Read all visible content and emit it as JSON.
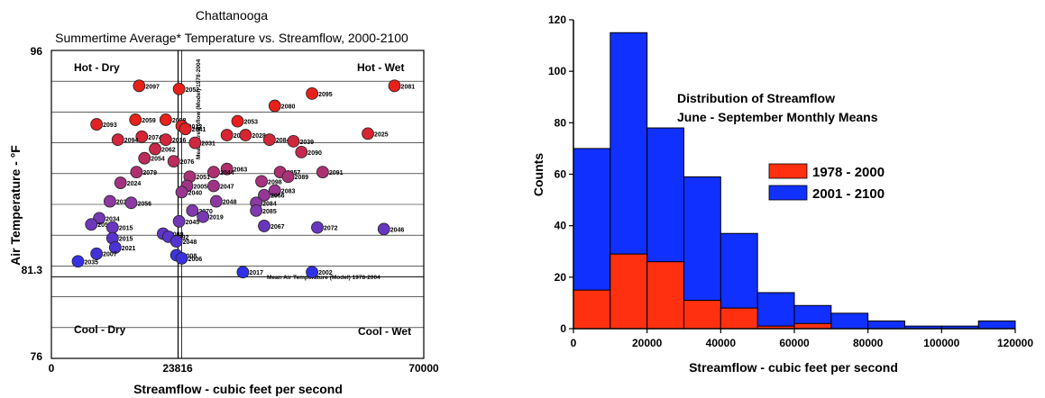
{
  "scatter": {
    "title_line1": "Chattanooga",
    "title_line2": "Summertime Average* Temperature vs. Streamflow, 2000-2100",
    "xlabel": "Streamflow - cubic feet per second",
    "ylabel": "Air  Temperature  -  °F",
    "x_ticks": [
      "0",
      "23816",
      "70000"
    ],
    "y_ticks": [
      "96",
      "81.3",
      "76"
    ],
    "quadrants": {
      "hot_dry": "Hot - Dry",
      "hot_wet": "Hot - Wet",
      "cool_dry": "Cool - Dry",
      "cool_wet": "Cool - Wet"
    },
    "mean_temp_label": "Mean Air Temperature (Model) 1978-2004",
    "mean_flow_label": "Mean Streamflow (Model) 1978-2004",
    "colors": {
      "hot": "#e8201a",
      "mid": "#8a3aa6",
      "cool": "#3030e8"
    }
  },
  "chart_data": [
    {
      "type": "scatter",
      "title": "Chattanooga\nSummertime Average* Temperature vs. Streamflow, 2000-2100",
      "xlabel": "Streamflow - cubic feet per second",
      "ylabel": "Air Temperature - °F",
      "xlim": [
        0,
        70000
      ],
      "ylim": [
        76,
        96
      ],
      "ref_lines": {
        "mean_streamflow": 23816,
        "mean_temperature": 81.3
      },
      "points": [
        {
          "label": "2097",
          "x": 16500,
          "y": 93.7
        },
        {
          "label": "2052",
          "x": 24000,
          "y": 93.5
        },
        {
          "label": "2095",
          "x": 49000,
          "y": 93.2
        },
        {
          "label": "2081",
          "x": 64500,
          "y": 93.7
        },
        {
          "label": "2080",
          "x": 42000,
          "y": 92.4
        },
        {
          "label": "2093",
          "x": 8500,
          "y": 91.2
        },
        {
          "label": "2059",
          "x": 15800,
          "y": 91.5
        },
        {
          "label": "2088",
          "x": 21500,
          "y": 91.5
        },
        {
          "label": "2053",
          "x": 35000,
          "y": 91.4
        },
        {
          "label": "2012",
          "x": 24500,
          "y": 91.1
        },
        {
          "label": "2041",
          "x": 25200,
          "y": 90.9
        },
        {
          "label": "2025",
          "x": 59500,
          "y": 90.6
        },
        {
          "label": "2074",
          "x": 17000,
          "y": 90.4
        },
        {
          "label": "2094",
          "x": 12500,
          "y": 90.2
        },
        {
          "label": "2016",
          "x": 21500,
          "y": 90.2
        },
        {
          "label": "2031",
          "x": 27000,
          "y": 90.0
        },
        {
          "label": "2010",
          "x": 33000,
          "y": 90.5
        },
        {
          "label": "2028",
          "x": 36500,
          "y": 90.5
        },
        {
          "label": "2084",
          "x": 41000,
          "y": 90.2
        },
        {
          "label": "2039",
          "x": 45500,
          "y": 90.1
        },
        {
          "label": "2062",
          "x": 19500,
          "y": 89.6
        },
        {
          "label": "2090",
          "x": 47000,
          "y": 89.4
        },
        {
          "label": "2054",
          "x": 17500,
          "y": 89.0
        },
        {
          "label": "2076",
          "x": 23000,
          "y": 88.8
        },
        {
          "label": "2057",
          "x": 43000,
          "y": 88.1
        },
        {
          "label": "2091",
          "x": 51000,
          "y": 88.1
        },
        {
          "label": "2063",
          "x": 33000,
          "y": 88.3
        },
        {
          "label": "2079",
          "x": 16000,
          "y": 88.1
        },
        {
          "label": "2044",
          "x": 30500,
          "y": 88.1
        },
        {
          "label": "2051",
          "x": 26000,
          "y": 87.8
        },
        {
          "label": "2024",
          "x": 13000,
          "y": 87.4
        },
        {
          "label": "2005",
          "x": 25500,
          "y": 87.2
        },
        {
          "label": "2047",
          "x": 30500,
          "y": 87.2
        },
        {
          "label": "2098",
          "x": 39500,
          "y": 87.5
        },
        {
          "label": "2089",
          "x": 44500,
          "y": 87.8
        },
        {
          "label": "2040",
          "x": 24500,
          "y": 86.8
        },
        {
          "label": "2083",
          "x": 42000,
          "y": 86.9
        },
        {
          "label": "2066",
          "x": 40000,
          "y": 86.6
        },
        {
          "label": "2084",
          "x": 38500,
          "y": 86.1
        },
        {
          "label": "2048",
          "x": 31000,
          "y": 86.2
        },
        {
          "label": "2039",
          "x": 11000,
          "y": 86.2
        },
        {
          "label": "2056",
          "x": 15000,
          "y": 86.1
        },
        {
          "label": "2070",
          "x": 26500,
          "y": 85.6
        },
        {
          "label": "2019",
          "x": 28500,
          "y": 85.2
        },
        {
          "label": "2085",
          "x": 38500,
          "y": 85.6
        },
        {
          "label": "2034",
          "x": 9000,
          "y": 85.1
        },
        {
          "label": "2050",
          "x": 7500,
          "y": 84.7
        },
        {
          "label": "2015",
          "x": 11500,
          "y": 84.5
        },
        {
          "label": "2045",
          "x": 24000,
          "y": 84.9
        },
        {
          "label": "2067",
          "x": 40000,
          "y": 84.6
        },
        {
          "label": "2072",
          "x": 50000,
          "y": 84.5
        },
        {
          "label": "2046",
          "x": 62500,
          "y": 84.4
        },
        {
          "label": "2009",
          "x": 21000,
          "y": 84.1
        },
        {
          "label": "2092",
          "x": 22000,
          "y": 83.9
        },
        {
          "label": "2048",
          "x": 23500,
          "y": 83.6
        },
        {
          "label": "2015",
          "x": 11500,
          "y": 83.8
        },
        {
          "label": "2021",
          "x": 12000,
          "y": 83.2
        },
        {
          "label": "2007",
          "x": 8500,
          "y": 82.8
        },
        {
          "label": "2035",
          "x": 5000,
          "y": 82.3
        },
        {
          "label": "2008",
          "x": 23500,
          "y": 82.7
        },
        {
          "label": "2006",
          "x": 24500,
          "y": 82.5
        },
        {
          "label": "2017",
          "x": 36000,
          "y": 81.6
        },
        {
          "label": "2002",
          "x": 49000,
          "y": 81.6
        }
      ]
    },
    {
      "type": "bar",
      "title": "Distribution of Streamflow\nJune - September Monthly Means",
      "xlabel": "Streamflow - cubic feet per second",
      "ylabel": "Counts",
      "xlim": [
        0,
        120000
      ],
      "ylim": [
        0,
        120
      ],
      "bin_width": 10000,
      "x_ticks": [
        "0",
        "20000",
        "40000",
        "60000",
        "80000",
        "100000",
        "120000"
      ],
      "y_ticks": [
        "0",
        "20",
        "40",
        "60",
        "80",
        "100",
        "120"
      ],
      "bin_starts": [
        0,
        10000,
        20000,
        30000,
        40000,
        50000,
        60000,
        70000,
        80000,
        90000,
        100000,
        110000
      ],
      "series": [
        {
          "name": "1978 - 2000",
          "color": "#ff3010",
          "values": [
            15,
            29,
            26,
            11,
            8,
            1,
            2,
            0,
            0,
            0,
            0,
            0
          ]
        },
        {
          "name": "2001 - 2100",
          "color": "#1030ff",
          "values": [
            70,
            115,
            78,
            59,
            37,
            14,
            9,
            6,
            3,
            1,
            1,
            3
          ]
        }
      ],
      "legend": [
        "1978 - 2000",
        "2001 - 2100"
      ]
    }
  ]
}
